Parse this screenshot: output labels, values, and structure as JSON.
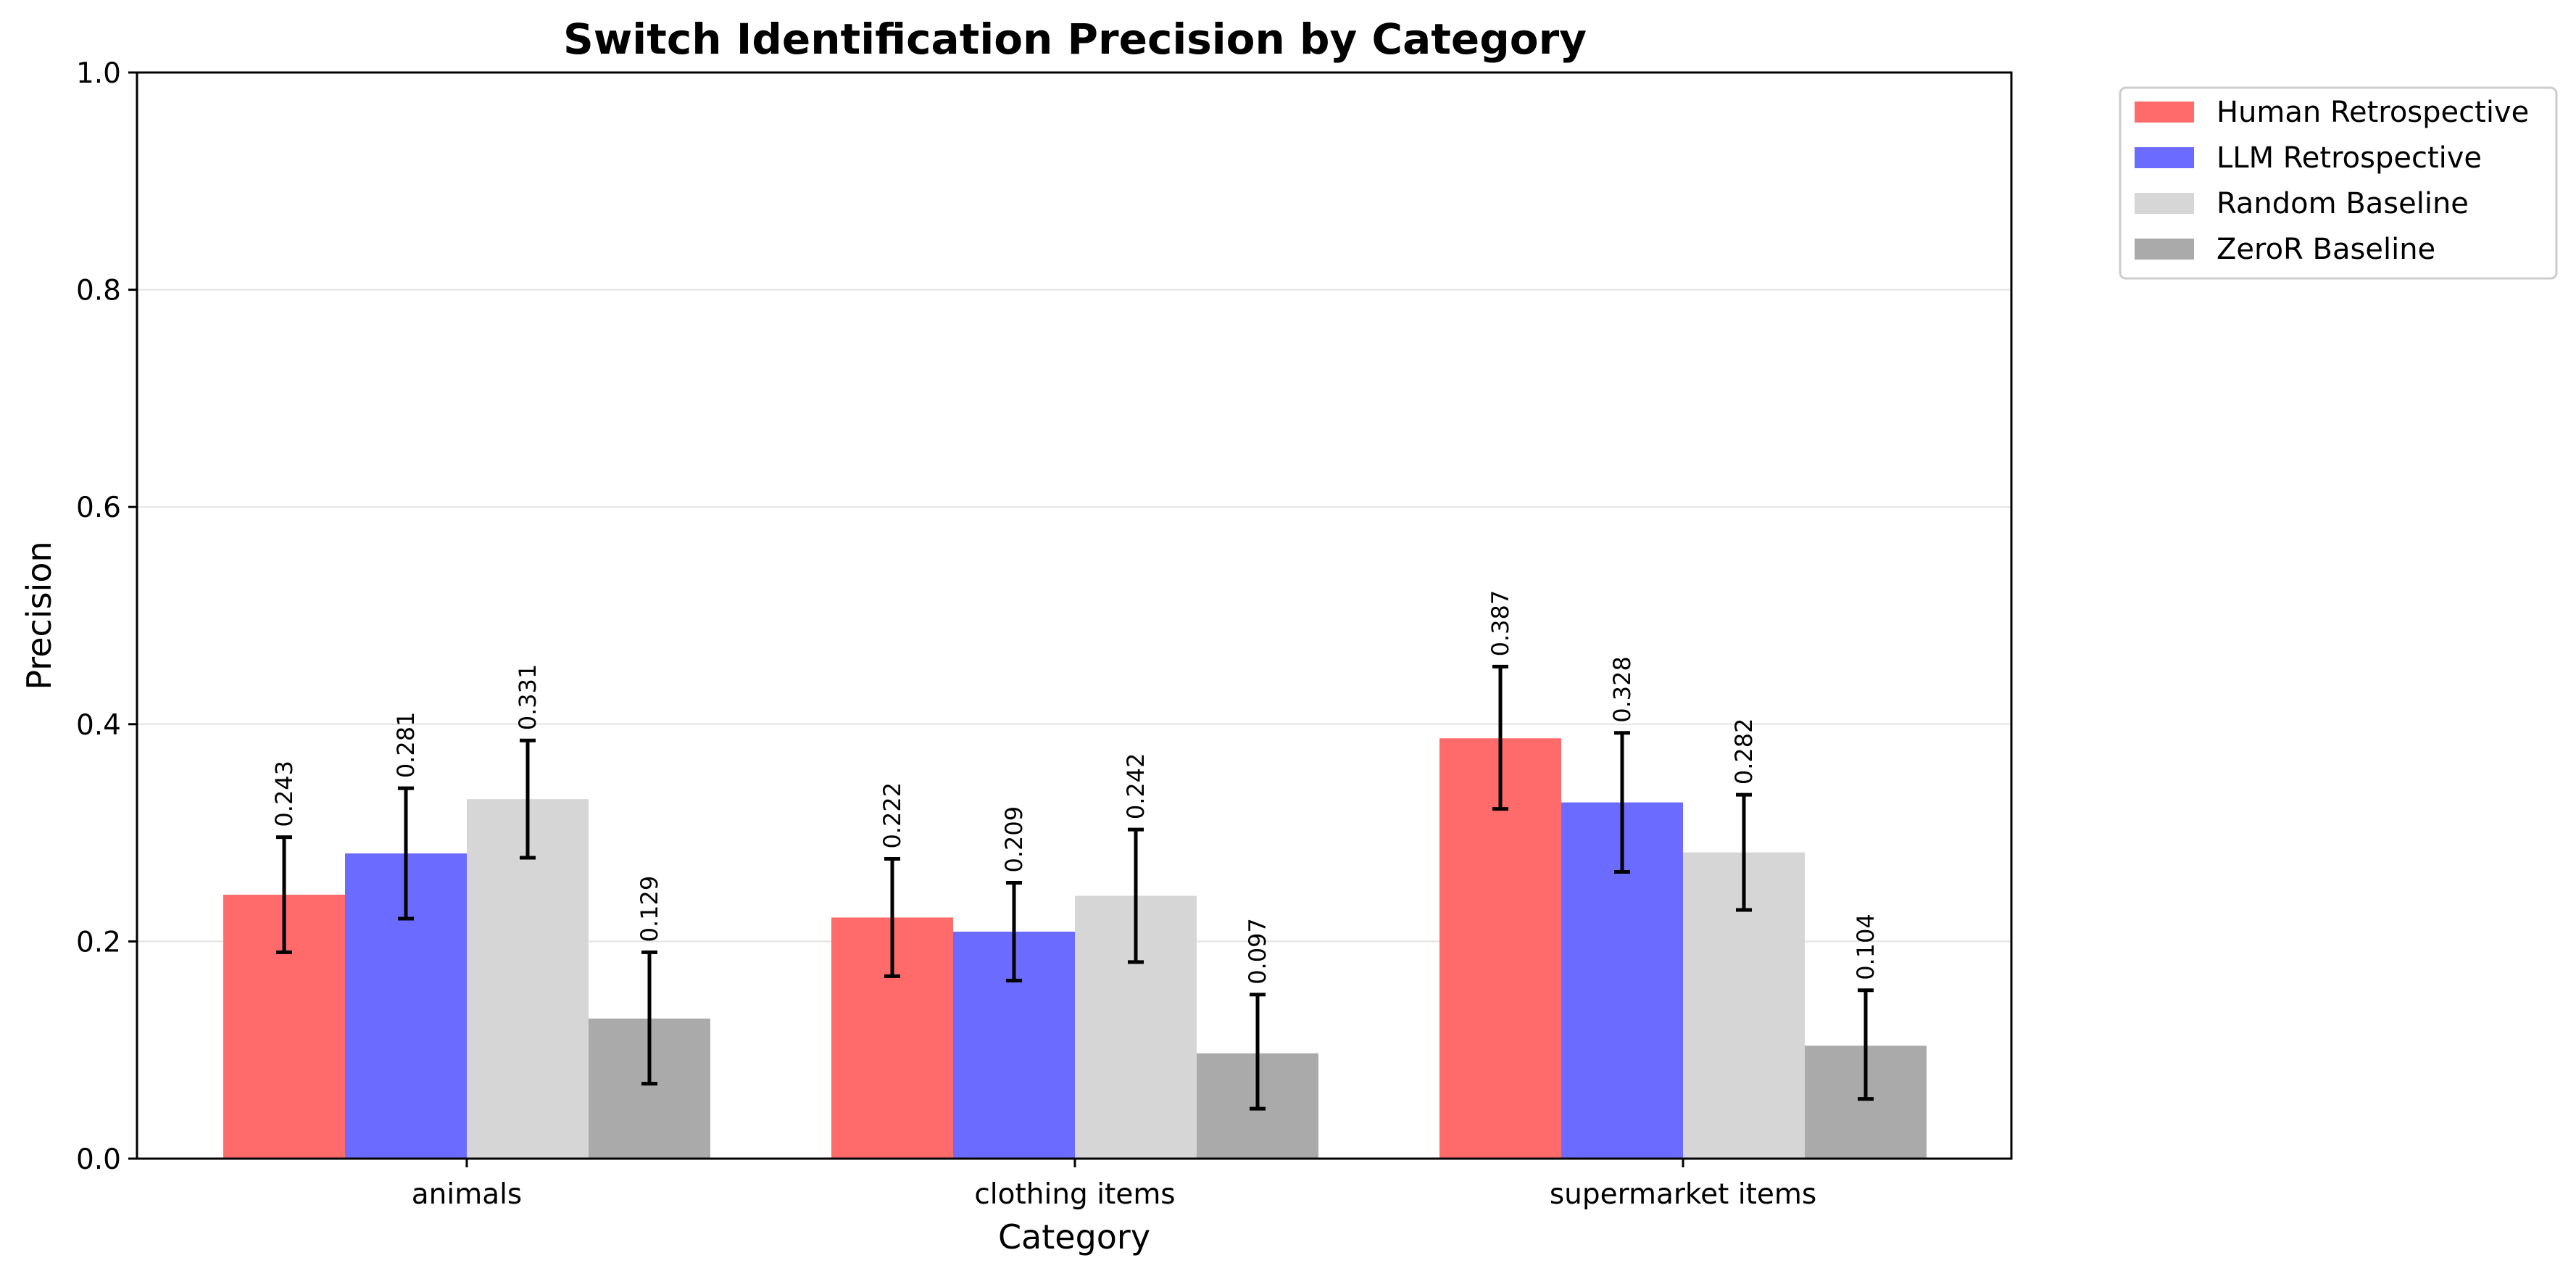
{
  "chart_data": {
    "type": "bar",
    "title": "Switch Identification Precision by Category",
    "xlabel": "Category",
    "ylabel": "Precision",
    "ylim": [
      0,
      1.0
    ],
    "yticks": [
      "0.0",
      "0.2",
      "0.4",
      "0.6",
      "0.8",
      "1.0"
    ],
    "ytick_values": [
      0,
      0.2,
      0.4,
      0.6,
      0.8,
      1.0
    ],
    "grid": "horizontal",
    "legend_position": "outside-top-right",
    "categories": [
      "animals",
      "clothing items",
      "supermarket items"
    ],
    "series": [
      {
        "name": "Human Retrospective",
        "color": "#ff6b6b",
        "values": [
          0.243,
          0.222,
          0.387
        ],
        "labels": [
          "0.243",
          "0.222",
          "0.387"
        ],
        "err_low": [
          0.19,
          0.168,
          0.322
        ],
        "err_high": [
          0.296,
          0.276,
          0.453
        ]
      },
      {
        "name": "LLM Retrospective",
        "color": "#6b6bff",
        "values": [
          0.281,
          0.209,
          0.328
        ],
        "labels": [
          "0.281",
          "0.209",
          "0.328"
        ],
        "err_low": [
          0.221,
          0.164,
          0.264
        ],
        "err_high": [
          0.341,
          0.254,
          0.392
        ]
      },
      {
        "name": "Random Baseline",
        "color": "#d6d6d6",
        "values": [
          0.331,
          0.242,
          0.282
        ],
        "labels": [
          "0.331",
          "0.242",
          "0.282"
        ],
        "err_low": [
          0.277,
          0.181,
          0.229
        ],
        "err_high": [
          0.385,
          0.303,
          0.335
        ]
      },
      {
        "name": "ZeroR Baseline",
        "color": "#aaaaaa",
        "values": [
          0.129,
          0.097,
          0.104
        ],
        "labels": [
          "0.129",
          "0.097",
          "0.104"
        ],
        "err_low": [
          0.069,
          0.046,
          0.055
        ],
        "err_high": [
          0.19,
          0.151,
          0.155
        ]
      }
    ]
  }
}
